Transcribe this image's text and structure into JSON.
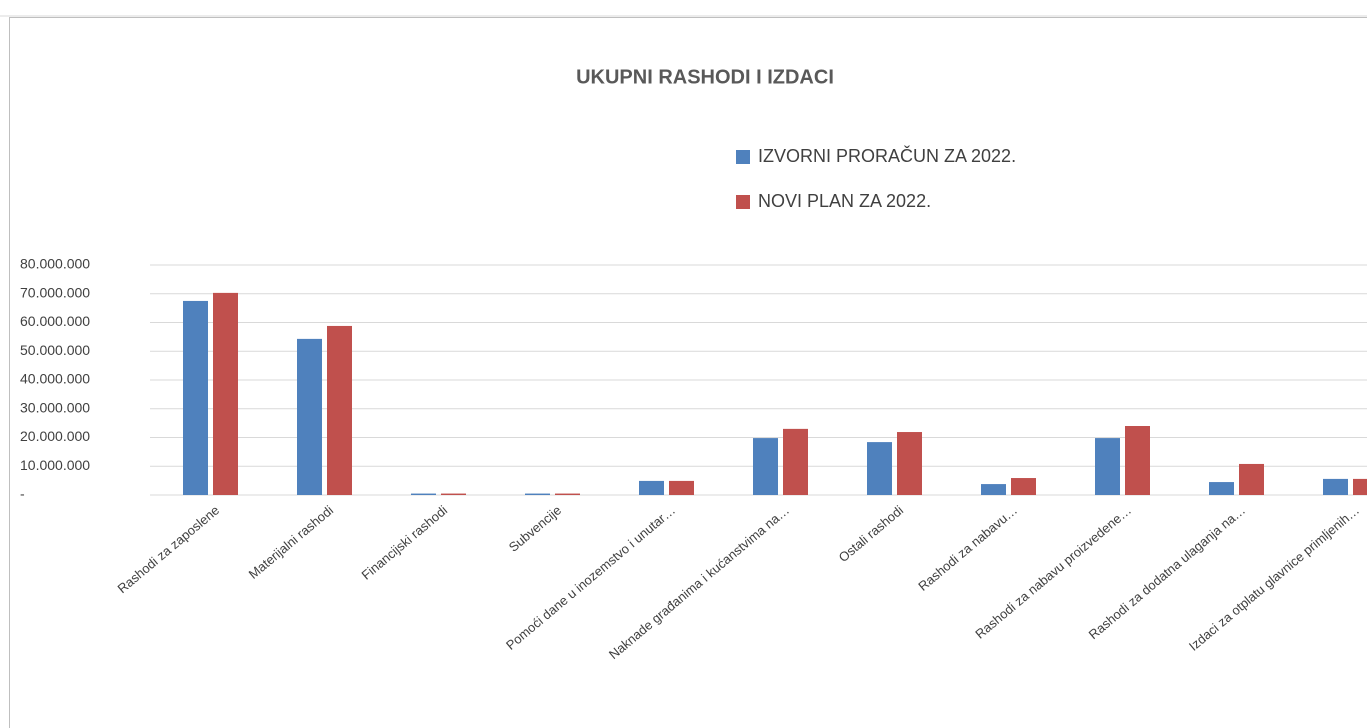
{
  "chart_data": {
    "type": "bar",
    "title": "UKUPNI RASHODI I IZDACI",
    "categories": [
      "Rashodi za zaposlene",
      "Materijalni rashodi",
      "Financijski rashodi",
      "Subvencije",
      "Pomoći dane u inozemstvo i unutar…",
      "Naknade građanima i kućanstvima na…",
      "Ostali rashodi",
      "Rashodi za nabavu…",
      "Rashodi za nabavu proizvedene…",
      "Rashodi za dodatna ulaganja na…",
      "Izdaci za otplatu glavnice primljenih…"
    ],
    "series": [
      {
        "name": "IZVORNI PRORAČUN ZA 2022.",
        "color": "#4f81bd",
        "values": [
          67500000,
          54300000,
          500000,
          500000,
          4900000,
          19800000,
          18400000,
          3800000,
          19800000,
          4500000,
          5600000
        ]
      },
      {
        "name": "NOVI PLAN ZA 2022.",
        "color": "#c0504d",
        "values": [
          70300000,
          58800000,
          500000,
          500000,
          4900000,
          23000000,
          21900000,
          5900000,
          24000000,
          10800000,
          5600000
        ]
      }
    ],
    "ylim": [
      0,
      80000000
    ],
    "yticks": [
      {
        "value": 0,
        "label": "-"
      },
      {
        "value": 10000000,
        "label": "10.000.000"
      },
      {
        "value": 20000000,
        "label": "20.000.000"
      },
      {
        "value": 30000000,
        "label": "30.000.000"
      },
      {
        "value": 40000000,
        "label": "40.000.000"
      },
      {
        "value": 50000000,
        "label": "50.000.000"
      },
      {
        "value": 60000000,
        "label": "60.000.000"
      },
      {
        "value": 70000000,
        "label": "70.000.000"
      },
      {
        "value": 80000000,
        "label": "80.000.000"
      }
    ],
    "grid": true,
    "legend": "top-right"
  }
}
